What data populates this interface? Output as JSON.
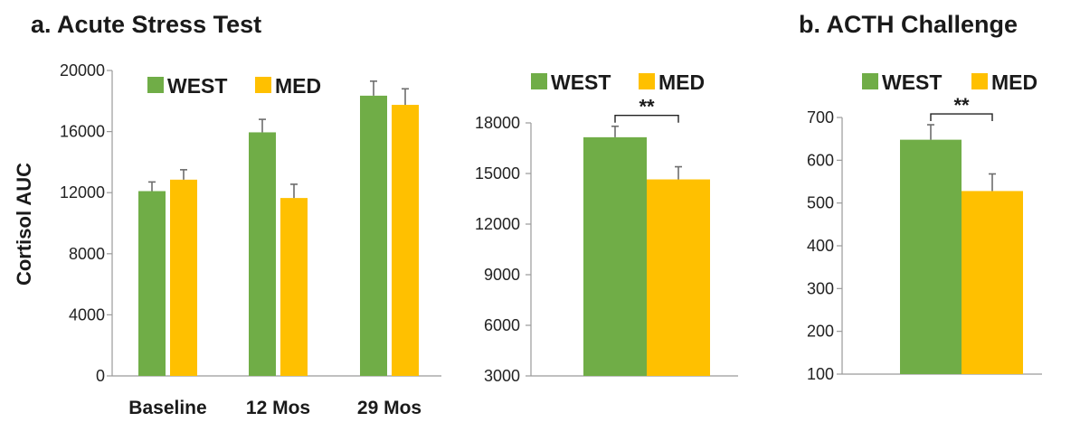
{
  "panel_titles": {
    "a": "a. Acute Stress Test",
    "b": "b. ACTH Challenge"
  },
  "y_axis_label": "Cortisol AUC",
  "colors": {
    "WEST": "#70AD47",
    "MED": "#FFC000",
    "axis": "#9a9a9a",
    "error": "#6d6d6d"
  },
  "chart_data": [
    {
      "type": "bar",
      "categories": [
        "Baseline",
        "12 Mos",
        "29 Mos"
      ],
      "series": [
        {
          "name": "WEST",
          "values": [
            12100,
            15950,
            18350
          ],
          "errors": [
            600,
            850,
            950
          ]
        },
        {
          "name": "MED",
          "values": [
            12850,
            11650,
            17750
          ],
          "errors": [
            650,
            900,
            1050
          ]
        }
      ],
      "ylabel": "Cortisol AUC",
      "ylim": [
        0,
        20000
      ],
      "yticks": [
        0,
        4000,
        8000,
        12000,
        16000,
        20000
      ],
      "ytick_labels": [
        "0",
        "4000",
        "8000",
        "12000",
        "16000",
        "20000"
      ],
      "legend": "top"
    },
    {
      "type": "bar",
      "categories": [
        ""
      ],
      "series": [
        {
          "name": "WEST",
          "values": [
            17150
          ],
          "errors": [
            650
          ]
        },
        {
          "name": "MED",
          "values": [
            14650
          ],
          "errors": [
            750
          ]
        }
      ],
      "ylim": [
        3000,
        18000
      ],
      "yticks": [
        3000,
        6000,
        9000,
        12000,
        15000,
        18000
      ],
      "ytick_labels": [
        "3000",
        "6000",
        "9000",
        "12000",
        "15000",
        "18000"
      ],
      "annotation": "**",
      "legend": "top"
    },
    {
      "type": "bar",
      "categories": [
        ""
      ],
      "series": [
        {
          "name": "WEST",
          "values": [
            648
          ],
          "errors": [
            35
          ]
        },
        {
          "name": "MED",
          "values": [
            528
          ],
          "errors": [
            40
          ]
        }
      ],
      "ylim": [
        100,
        700
      ],
      "yticks": [
        100,
        200,
        300,
        400,
        500,
        600,
        700
      ],
      "ytick_labels": [
        "100",
        "200",
        "300",
        "400",
        "500",
        "600",
        "700"
      ],
      "annotation": "**",
      "legend": "top"
    }
  ]
}
